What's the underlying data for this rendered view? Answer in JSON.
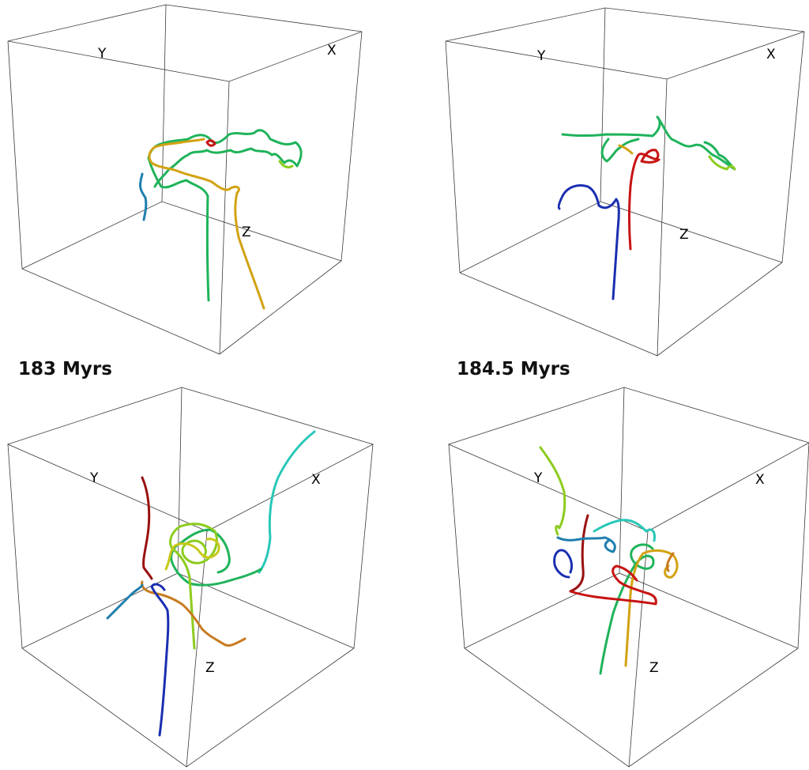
{
  "colors": {
    "blue": "#1a2fb0",
    "teal": "#1f7fae",
    "cyan": "#28c8b8",
    "green": "#1fb35a",
    "lime": "#8ccc1e",
    "yellow": "#c8c81a",
    "gold": "#d2a212",
    "orange": "#c87a1e",
    "red": "#c81414",
    "darkred": "#9a1010",
    "box": "#3a3a3a"
  },
  "panels": [
    {
      "id": "top-left",
      "axis_labels": {
        "x": "X",
        "y": "Y",
        "z": "Z"
      }
    },
    {
      "id": "top-right",
      "axis_labels": {
        "x": "X",
        "y": "Y",
        "z": "Z"
      }
    },
    {
      "id": "bottom-left",
      "time_label": "183 Myrs",
      "axis_labels": {
        "x": "X",
        "y": "Y",
        "z": "Z"
      }
    },
    {
      "id": "bottom-right",
      "time_label": "184.5 Myrs",
      "axis_labels": {
        "x": "X",
        "y": "Y",
        "z": "Z"
      }
    }
  ]
}
